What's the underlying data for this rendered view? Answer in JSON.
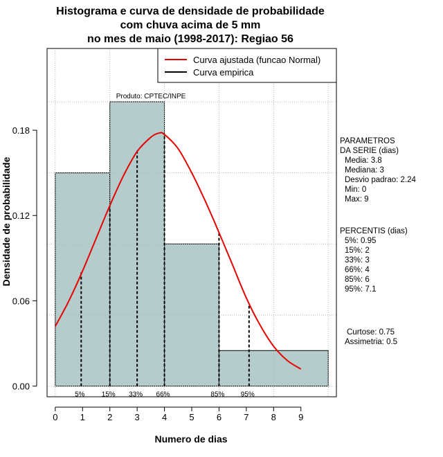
{
  "chart_data": {
    "type": "bar",
    "title_lines": [
      "Histograma e curva de densidade de probabilidade",
      "com chuva acima de 5 mm",
      "no mes de maio (1998-2017): Regiao 56"
    ],
    "xlabel": "Numero de dias",
    "ylabel": "Densidade de probabilidade",
    "xlim": [
      -0.3,
      10.3
    ],
    "ylim": [
      -0.0075,
      0.2375
    ],
    "x_ticks": [
      0,
      1,
      2,
      3,
      4,
      5,
      6,
      7,
      8,
      9
    ],
    "x_tick_labels": [
      "0",
      "1",
      "2",
      "3",
      "4",
      "5",
      "6",
      "7",
      "8",
      "9"
    ],
    "y_ticks": [
      0.0,
      0.06,
      0.12,
      0.18
    ],
    "y_tick_labels": [
      "0.00",
      "0.06",
      "0.12",
      "0.18"
    ],
    "bins": [
      {
        "start": 0,
        "end": 2,
        "density": 0.15
      },
      {
        "start": 2,
        "end": 4,
        "density": 0.2
      },
      {
        "start": 4,
        "end": 6,
        "density": 0.1
      },
      {
        "start": 6,
        "end": 10,
        "density": 0.025
      }
    ],
    "fitted_curve": {
      "name": "Curva ajustada (funcao Normal)",
      "color": "#e60000",
      "x": [
        0,
        0.5,
        1,
        1.5,
        2,
        2.5,
        3,
        3.5,
        3.8,
        4,
        4.5,
        5,
        5.5,
        6,
        6.5,
        7,
        7.5,
        8,
        8.5,
        9
      ],
      "y": [
        0.042,
        0.06,
        0.081,
        0.104,
        0.127,
        0.148,
        0.165,
        0.175,
        0.178,
        0.177,
        0.167,
        0.15,
        0.13,
        0.108,
        0.085,
        0.062,
        0.043,
        0.028,
        0.018,
        0.012
      ]
    },
    "empirical_curve": {
      "name": "Curva empirica",
      "color": "#000000"
    },
    "percentile_lines": [
      {
        "label": "5%",
        "x": 0.95,
        "y": 0.08
      },
      {
        "label": "15%",
        "x": 2,
        "y": 0.127
      },
      {
        "label": "33%",
        "x": 3,
        "y": 0.167
      },
      {
        "label": "66%",
        "x": 4,
        "y": 0.177
      },
      {
        "label": "85%",
        "x": 6,
        "y": 0.108
      },
      {
        "label": "95%",
        "x": 7.1,
        "y": 0.058
      }
    ],
    "annotation": "Produto: CPTEC/INPE",
    "legend_position": "top-right",
    "grid": true
  },
  "side_panel": {
    "parametros_lines": [
      "PARAMETROS",
      "DA SERIE (dias)",
      "Media: 3.8",
      "Mediana: 3",
      "Desvio padrao: 2.24",
      "Min: 0",
      "Max: 9"
    ],
    "percentis_lines": [
      "PERCENTIS (dias)",
      "5%: 0.95",
      "15%: 2",
      "33%: 3",
      "66%: 4",
      "85%: 6",
      "95%: 7.1"
    ],
    "stats_lines": [
      "Curtose: 0.75",
      "Assimetria: 0.5"
    ]
  },
  "colors": {
    "bar_fill": "#b5cccc",
    "grid": "#b4b4b4"
  }
}
